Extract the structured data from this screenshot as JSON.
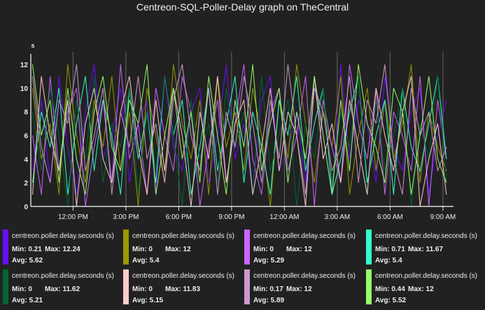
{
  "chart_data": {
    "type": "line",
    "title": "Centreon-SQL-Poller-Delay graph on TheCentral",
    "ylabel": "s",
    "ylim": [
      0,
      12.5
    ],
    "yticks": [
      "0",
      "2",
      "4",
      "6",
      "8",
      "10",
      "12"
    ],
    "ytick_values": [
      0,
      2,
      4,
      6,
      8,
      10,
      12
    ],
    "xlim_hours": [
      9.6,
      33.6
    ],
    "xticks": [
      "12:00 PM",
      "3:00 PM",
      "6:00 PM",
      "9:00 PM",
      "12:00 AM",
      "3:00 AM",
      "6:00 AM",
      "9:00 AM"
    ],
    "xtick_hours": [
      12,
      15,
      18,
      21,
      24,
      27,
      30,
      33
    ],
    "x_start_hour": 9.7,
    "x_step_hours": 0.5,
    "grid": "vertical",
    "series": [
      {
        "name": "centreon.poller.delay.seconds (s)",
        "color": "#6a0dff",
        "min": "0.21",
        "max": "12.24",
        "avg": "5.62",
        "values": [
          3,
          9,
          2,
          11,
          5,
          1,
          8,
          12,
          4,
          6,
          10,
          2,
          7,
          9,
          1,
          11,
          5,
          3,
          8,
          10,
          2,
          6,
          12,
          4,
          7,
          1,
          9,
          11,
          3,
          5,
          8,
          2,
          10,
          6,
          1,
          12,
          4,
          9,
          7,
          2,
          11,
          5,
          3,
          8,
          10,
          1,
          6,
          9
        ]
      },
      {
        "name": "centreon.poller.delay.seconds (s)",
        "color": "#999900",
        "min": "0",
        "max": "12",
        "avg": "5.4",
        "values": [
          10,
          4,
          7,
          1,
          12,
          6,
          2,
          9,
          5,
          11,
          3,
          8,
          0,
          10,
          6,
          2,
          12,
          7,
          4,
          9,
          1,
          11,
          5,
          8,
          3,
          10,
          6,
          0,
          9,
          4,
          12,
          7,
          2,
          8,
          5,
          11,
          1,
          6,
          10,
          3,
          9,
          4,
          7,
          12,
          2,
          8,
          5,
          3
        ]
      },
      {
        "name": "centreon.poller.delay.seconds (s)",
        "color": "#cc66ff",
        "min": "0",
        "max": "12",
        "avg": "5.29",
        "values": [
          6,
          1,
          11,
          3,
          8,
          10,
          0,
          5,
          9,
          2,
          12,
          4,
          7,
          1,
          10,
          6,
          3,
          11,
          8,
          0,
          5,
          9,
          2,
          7,
          12,
          4,
          1,
          8,
          10,
          3,
          6,
          11,
          0,
          9,
          5,
          2,
          12,
          7,
          4,
          10,
          1,
          8,
          6,
          3,
          11,
          0,
          9,
          4
        ]
      },
      {
        "name": "centreon.poller.delay.seconds (s)",
        "color": "#33ffcc",
        "min": "0.71",
        "max": "11.67",
        "avg": "5.4",
        "values": [
          2,
          8,
          5,
          10,
          1,
          7,
          11,
          3,
          9,
          6,
          1,
          10,
          4,
          8,
          2,
          11,
          6,
          9,
          1,
          5,
          10,
          3,
          7,
          11,
          2,
          8,
          5,
          1,
          9,
          6,
          11,
          3,
          7,
          10,
          1,
          4,
          8,
          11,
          2,
          6,
          9,
          1,
          10,
          5,
          3,
          7,
          11,
          4
        ]
      },
      {
        "name": "centreon.poller.delay.seconds (s)",
        "color": "#006633",
        "min": "0",
        "max": "11.62",
        "avg": "5.21",
        "values": [
          8,
          3,
          10,
          6,
          0,
          9,
          4,
          11,
          2,
          7,
          5,
          10,
          1,
          8,
          3,
          11,
          6,
          0,
          9,
          4,
          7,
          2,
          10,
          5,
          8,
          1,
          11,
          3,
          6,
          9,
          0,
          7,
          4,
          10,
          2,
          8,
          5,
          11,
          1,
          9,
          3,
          6,
          10,
          0,
          7,
          4,
          11,
          2
        ]
      },
      {
        "name": "centreon.poller.delay.seconds (s)",
        "color": "#ffcccc",
        "min": "0",
        "max": "11.83",
        "avg": "5.15",
        "values": [
          1,
          11,
          6,
          3,
          9,
          0,
          7,
          10,
          4,
          2,
          8,
          11,
          5,
          1,
          9,
          3,
          10,
          6,
          0,
          8,
          4,
          11,
          2,
          7,
          9,
          1,
          5,
          10,
          3,
          8,
          6,
          0,
          11,
          4,
          7,
          2,
          9,
          5,
          1,
          10,
          6,
          3,
          8,
          11,
          0,
          4,
          7,
          1
        ]
      },
      {
        "name": "centreon.poller.delay.seconds (s)",
        "color": "#cc99cc",
        "min": "0.17",
        "max": "12",
        "avg": "5.89",
        "values": [
          11,
          5,
          2,
          9,
          7,
          12,
          3,
          6,
          10,
          1,
          8,
          5,
          11,
          4,
          7,
          2,
          9,
          12,
          6,
          3,
          10,
          1,
          8,
          5,
          11,
          7,
          2,
          9,
          4,
          12,
          6,
          1,
          10,
          8,
          3,
          5,
          11,
          2,
          9,
          7,
          12,
          4,
          1,
          10,
          6,
          8,
          3,
          5
        ]
      },
      {
        "name": "centreon.poller.delay.seconds (s)",
        "color": "#99ff66",
        "min": "0.44",
        "max": "12",
        "avg": "5.52",
        "values": [
          12,
          6,
          9,
          2,
          10,
          4,
          1,
          8,
          11,
          5,
          3,
          9,
          7,
          12,
          1,
          6,
          10,
          4,
          8,
          2,
          11,
          6,
          1,
          9,
          5,
          12,
          3,
          7,
          10,
          2,
          8,
          4,
          11,
          6,
          1,
          9,
          3,
          12,
          7,
          5,
          2,
          10,
          8,
          1,
          6,
          11,
          4,
          2
        ]
      }
    ]
  }
}
